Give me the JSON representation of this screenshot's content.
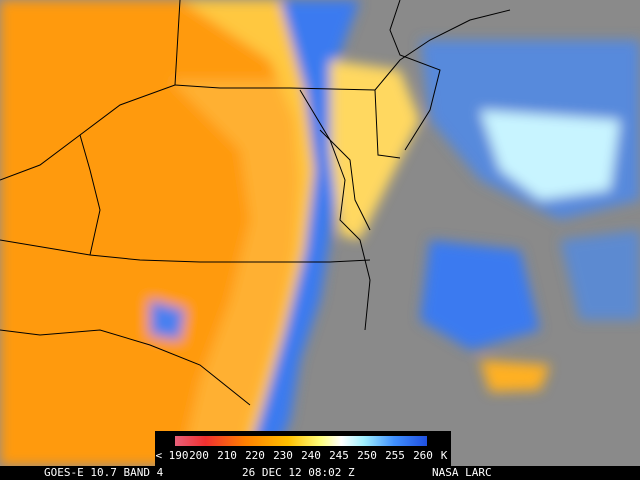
{
  "legend": {
    "labels": [
      "< 190",
      "200",
      "210",
      "220",
      "230",
      "240",
      "245",
      "250",
      "255",
      "260"
    ],
    "unit": "K"
  },
  "caption": {
    "satellite": "GOES-E 10.7 BAND 4",
    "time": "26 DEC 12 08:02 Z",
    "source": "NASA LARC"
  }
}
